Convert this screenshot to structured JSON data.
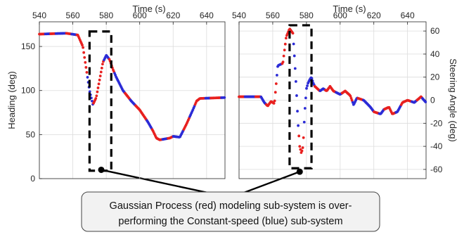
{
  "colors": {
    "red": "#e8201f",
    "blue": "#2b2bd6",
    "axis": "#262626",
    "grid": "#dcdcdc"
  },
  "chart_data": [
    {
      "type": "scatter",
      "title": "",
      "xlabel": "Time (s)",
      "ylabel": "Heading (deg)",
      "xlim": [
        540,
        651
      ],
      "ylim": [
        0,
        178
      ],
      "x_ticks": [
        540,
        560,
        580,
        600,
        620,
        640
      ],
      "y_ticks": [
        0,
        50,
        100,
        150
      ],
      "x_tick_labels": [
        "540",
        "560",
        "580",
        "600",
        "620",
        "640"
      ],
      "y_tick_labels": [
        "0",
        "50",
        "100",
        "150"
      ],
      "y_axis_side": "left",
      "grid": true,
      "curve": [
        [
          540,
          164
        ],
        [
          556,
          165
        ],
        [
          563,
          163
        ],
        [
          566,
          150
        ],
        [
          568,
          125
        ],
        [
          570,
          100
        ],
        [
          572,
          84
        ],
        [
          574,
          92
        ],
        [
          576,
          112
        ],
        [
          578,
          132
        ],
        [
          580,
          140
        ],
        [
          582,
          135
        ],
        [
          584,
          124
        ],
        [
          586,
          115
        ],
        [
          590,
          100
        ],
        [
          595,
          88
        ],
        [
          600,
          78
        ],
        [
          605,
          64
        ],
        [
          608,
          54
        ],
        [
          610,
          46
        ],
        [
          612,
          44
        ],
        [
          615,
          45
        ],
        [
          618,
          46
        ],
        [
          620,
          48
        ],
        [
          624,
          47
        ],
        [
          628,
          62
        ],
        [
          632,
          79
        ],
        [
          634,
          88
        ],
        [
          636,
          91
        ],
        [
          651,
          92
        ]
      ],
      "series": [
        {
          "name": "Gaussian Process",
          "color": "#e8201f"
        },
        {
          "name": "Constant-speed",
          "color": "#2b2bd6"
        }
      ],
      "highlight_box": {
        "x": [
          570,
          583
        ],
        "y": [
          9,
          167
        ]
      },
      "anchor_point": [
        577,
        10
      ]
    },
    {
      "type": "scatter",
      "title": "",
      "xlabel": "Time (s)",
      "ylabel": "Steering Angle (deg)",
      "xlim": [
        540,
        651
      ],
      "ylim": [
        -68,
        68
      ],
      "x_ticks": [
        540,
        560,
        580,
        600,
        620,
        640
      ],
      "y_ticks": [
        -60,
        -40,
        -20,
        0,
        20,
        40,
        60
      ],
      "x_tick_labels": [
        "540",
        "560",
        "580",
        "600",
        "620",
        "640"
      ],
      "y_tick_labels": [
        "-60",
        "-40",
        "-20",
        "0",
        "20",
        "40",
        "60"
      ],
      "y_axis_side": "right",
      "grid": true,
      "curve": [
        [
          540,
          3
        ],
        [
          553,
          3
        ],
        [
          555,
          -2
        ],
        [
          557,
          -5
        ],
        [
          559,
          -1
        ],
        [
          561,
          -3
        ],
        [
          563,
          30
        ],
        [
          566,
          32
        ],
        [
          568,
          55
        ],
        [
          570,
          62
        ],
        [
          572,
          58
        ],
        [
          573,
          35
        ],
        [
          574,
          10
        ],
        [
          575,
          -20
        ],
        [
          576,
          -40
        ],
        [
          577,
          -46
        ],
        [
          578,
          -40
        ],
        [
          579,
          -10
        ],
        [
          580,
          10
        ],
        [
          581,
          15
        ],
        [
          582,
          18
        ],
        [
          583,
          20
        ],
        [
          584,
          15
        ],
        [
          585,
          12
        ],
        [
          588,
          8
        ],
        [
          590,
          10
        ],
        [
          592,
          8
        ],
        [
          594,
          12
        ],
        [
          596,
          8
        ],
        [
          600,
          5
        ],
        [
          603,
          8
        ],
        [
          606,
          4
        ],
        [
          608,
          -4
        ],
        [
          610,
          2
        ],
        [
          614,
          0
        ],
        [
          618,
          -6
        ],
        [
          620,
          -10
        ],
        [
          624,
          -12
        ],
        [
          626,
          -8
        ],
        [
          629,
          -6
        ],
        [
          631,
          -12
        ],
        [
          634,
          -10
        ],
        [
          637,
          -2
        ],
        [
          640,
          0
        ],
        [
          644,
          -2
        ],
        [
          648,
          3
        ],
        [
          651,
          -2
        ]
      ],
      "series": [
        {
          "name": "Gaussian Process",
          "color": "#e8201f"
        },
        {
          "name": "Constant-speed",
          "color": "#2b2bd6"
        }
      ],
      "highlight_box": {
        "x": [
          570,
          583
        ],
        "y": [
          -59,
          65
        ]
      },
      "anchor_point": [
        576,
        -62
      ]
    }
  ],
  "callout": {
    "line1": "Gaussian Process (red) modeling sub-system is over-",
    "line2": "performing the Constant-speed (blue) sub-system"
  }
}
